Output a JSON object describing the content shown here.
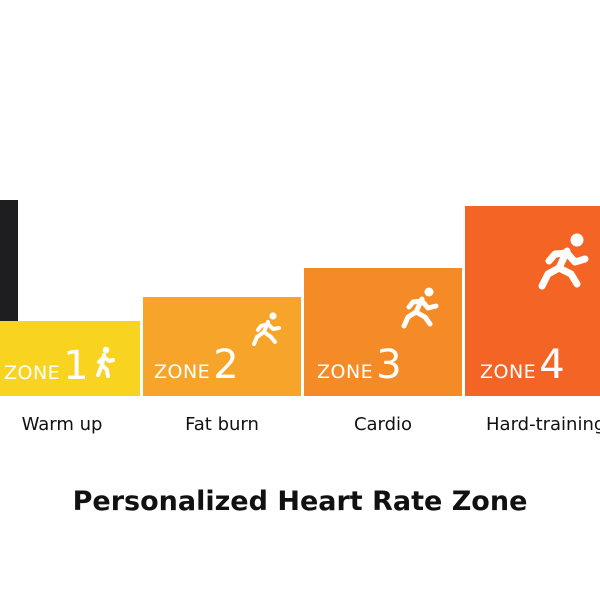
{
  "colors": {
    "zone1": "#f8d420",
    "zone2": "#f6a52a",
    "zone3": "#f58b26",
    "zone4": "#f46424"
  },
  "zones": [
    {
      "word": "ZONE",
      "number": "1",
      "label": "Warm up",
      "icon": "walking-runner-icon"
    },
    {
      "word": "ZONE",
      "number": "2",
      "label": "Fat burn",
      "icon": "jogging-runner-icon"
    },
    {
      "word": "ZONE",
      "number": "3",
      "label": "Cardio",
      "icon": "running-runner-icon"
    },
    {
      "word": "ZONE",
      "number": "4",
      "label": "Hard-training",
      "icon": "sprinting-runner-icon"
    }
  ],
  "title": "Personalized Heart Rate Zone"
}
